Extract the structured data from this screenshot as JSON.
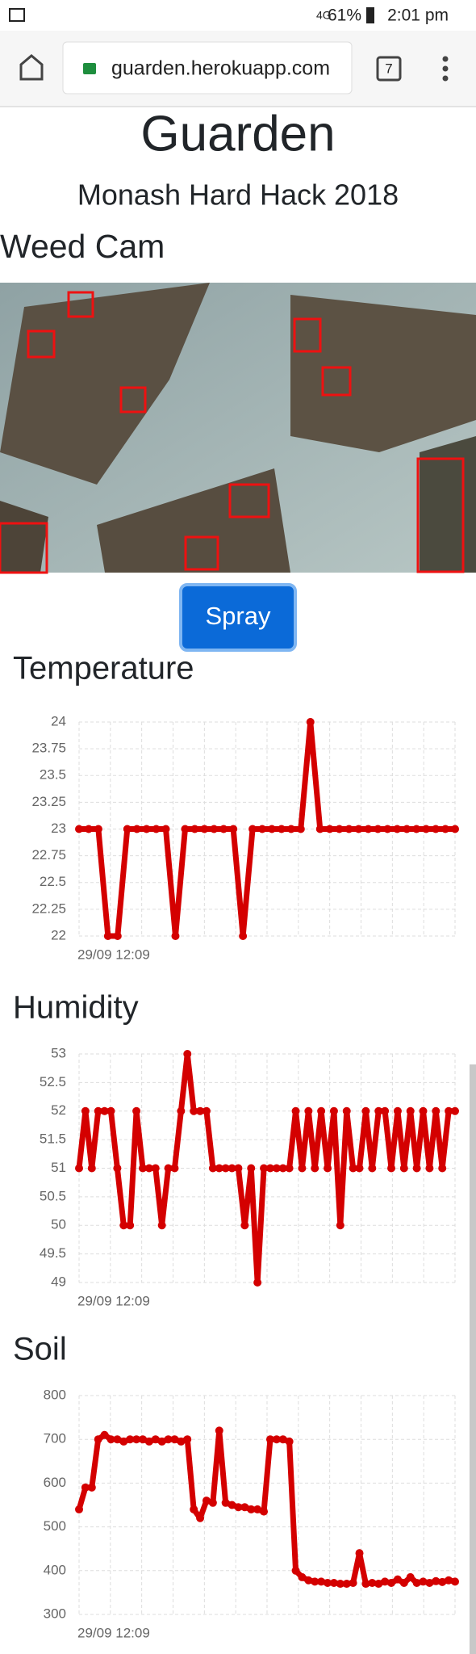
{
  "status": {
    "network": "4G",
    "battery": "61%",
    "time": "2:01 pm"
  },
  "browser": {
    "url": "guarden.herokuapp.com",
    "tabs": "7"
  },
  "header": {
    "title": "Guarden",
    "subtitle": "Monash Hard Hack 2018"
  },
  "weed_cam": {
    "title": "Weed Cam",
    "button": "Spray"
  },
  "chart_data": [
    {
      "type": "line",
      "title": "Temperature",
      "color": "#d40000",
      "grid": true,
      "categories": [
        "29/09 12:09",
        null,
        null,
        null,
        null,
        null,
        null,
        null,
        null,
        null,
        null,
        null,
        null,
        null,
        null,
        null,
        null,
        null,
        null,
        null,
        null,
        null,
        null,
        null,
        null,
        null,
        null,
        null,
        null,
        null,
        null,
        null,
        null,
        null,
        null,
        null,
        null,
        null,
        null,
        null
      ],
      "values": [
        23,
        23,
        23,
        22,
        22,
        23,
        23,
        23,
        23,
        23,
        22,
        23,
        23,
        23,
        23,
        23,
        23,
        22,
        23,
        23,
        23,
        23,
        23,
        23,
        24,
        23,
        23,
        23,
        23,
        23,
        23,
        23,
        23,
        23,
        23,
        23,
        23,
        23,
        23,
        23
      ],
      "ylim": [
        22,
        24
      ],
      "yticks": [
        22,
        22.25,
        22.5,
        22.75,
        23,
        23.25,
        23.5,
        23.75,
        24
      ]
    },
    {
      "type": "line",
      "title": "Humidity",
      "color": "#d40000",
      "grid": true,
      "categories": [
        "29/09 12:09",
        null,
        null,
        null,
        null,
        null,
        null,
        null,
        null,
        null,
        null,
        null,
        null,
        null,
        null,
        null,
        null,
        null,
        null,
        null,
        null,
        null,
        null,
        null,
        null,
        null,
        null,
        null,
        null,
        null,
        null,
        null,
        null,
        null,
        null,
        null,
        null,
        null,
        null,
        null,
        null,
        null,
        null,
        null,
        null,
        null,
        null,
        null,
        null,
        null,
        null,
        null,
        null,
        null,
        null,
        null,
        null,
        null,
        null,
        null
      ],
      "values": [
        51,
        52,
        51,
        52,
        52,
        52,
        51,
        50,
        50,
        52,
        51,
        51,
        51,
        50,
        51,
        51,
        52,
        53,
        52,
        52,
        52,
        51,
        51,
        51,
        51,
        51,
        50,
        51,
        49,
        51,
        51,
        51,
        51,
        51,
        52,
        51,
        52,
        51,
        52,
        51,
        52,
        50,
        52,
        51,
        51,
        52,
        51,
        52,
        52,
        51,
        52,
        51,
        52,
        51,
        52,
        51,
        52,
        51,
        52,
        52
      ],
      "ylim": [
        49,
        53
      ],
      "yticks": [
        49,
        49.5,
        50,
        50.5,
        51,
        51.5,
        52,
        52.5,
        53
      ]
    },
    {
      "type": "line",
      "title": "Soil",
      "color": "#d40000",
      "grid": true,
      "categories": [
        "29/09 12:09",
        null,
        null,
        null,
        null,
        null,
        null,
        null,
        null,
        null,
        null,
        null,
        null,
        null,
        null,
        null,
        null,
        null,
        null,
        null,
        null,
        null,
        null,
        null,
        null,
        null,
        null,
        null,
        null,
        null,
        null,
        null,
        null,
        null,
        null,
        null,
        null,
        null,
        null,
        null,
        null,
        null,
        null,
        null,
        null,
        null,
        null,
        null,
        null,
        null,
        null,
        null,
        null,
        null,
        null,
        null,
        null,
        null,
        null,
        null
      ],
      "values": [
        540,
        590,
        590,
        700,
        710,
        700,
        700,
        695,
        700,
        700,
        700,
        695,
        700,
        695,
        700,
        700,
        695,
        700,
        540,
        520,
        560,
        555,
        720,
        555,
        550,
        545,
        545,
        540,
        540,
        535,
        700,
        700,
        700,
        695,
        400,
        385,
        378,
        375,
        375,
        372,
        372,
        370,
        370,
        372,
        440,
        370,
        372,
        370,
        375,
        372,
        380,
        372,
        385,
        372,
        375,
        372,
        376,
        374,
        378,
        375
      ],
      "ylim": [
        300,
        800
      ],
      "yticks": [
        300,
        400,
        500,
        600,
        700,
        800
      ]
    }
  ]
}
